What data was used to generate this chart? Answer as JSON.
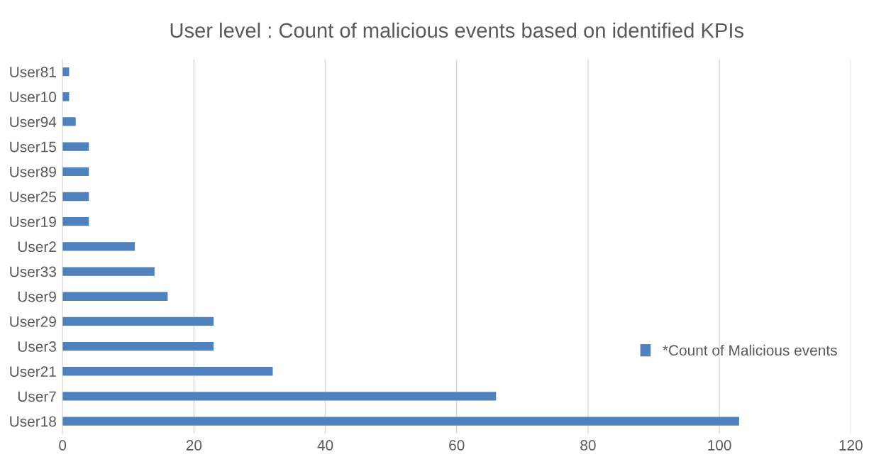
{
  "chart_data": {
    "type": "bar",
    "orientation": "horizontal",
    "title": "User level : Count of malicious events based on identified KPIs",
    "categories": [
      "User81",
      "User10",
      "User94",
      "User15",
      "User89",
      "User25",
      "User19",
      "User2",
      "User33",
      "User9",
      "User29",
      "User3",
      "User21",
      "User7",
      "User18"
    ],
    "series": [
      {
        "name": "*Count of Malicious events",
        "color": "#4f81bd",
        "values": [
          1,
          1,
          2,
          4,
          4,
          4,
          4,
          11,
          14,
          16,
          23,
          23,
          32,
          66,
          103
        ]
      }
    ],
    "xlim": [
      0,
      120
    ],
    "xticks": [
      0,
      20,
      40,
      60,
      80,
      100,
      120
    ],
    "grid": "x",
    "legend": "right"
  }
}
